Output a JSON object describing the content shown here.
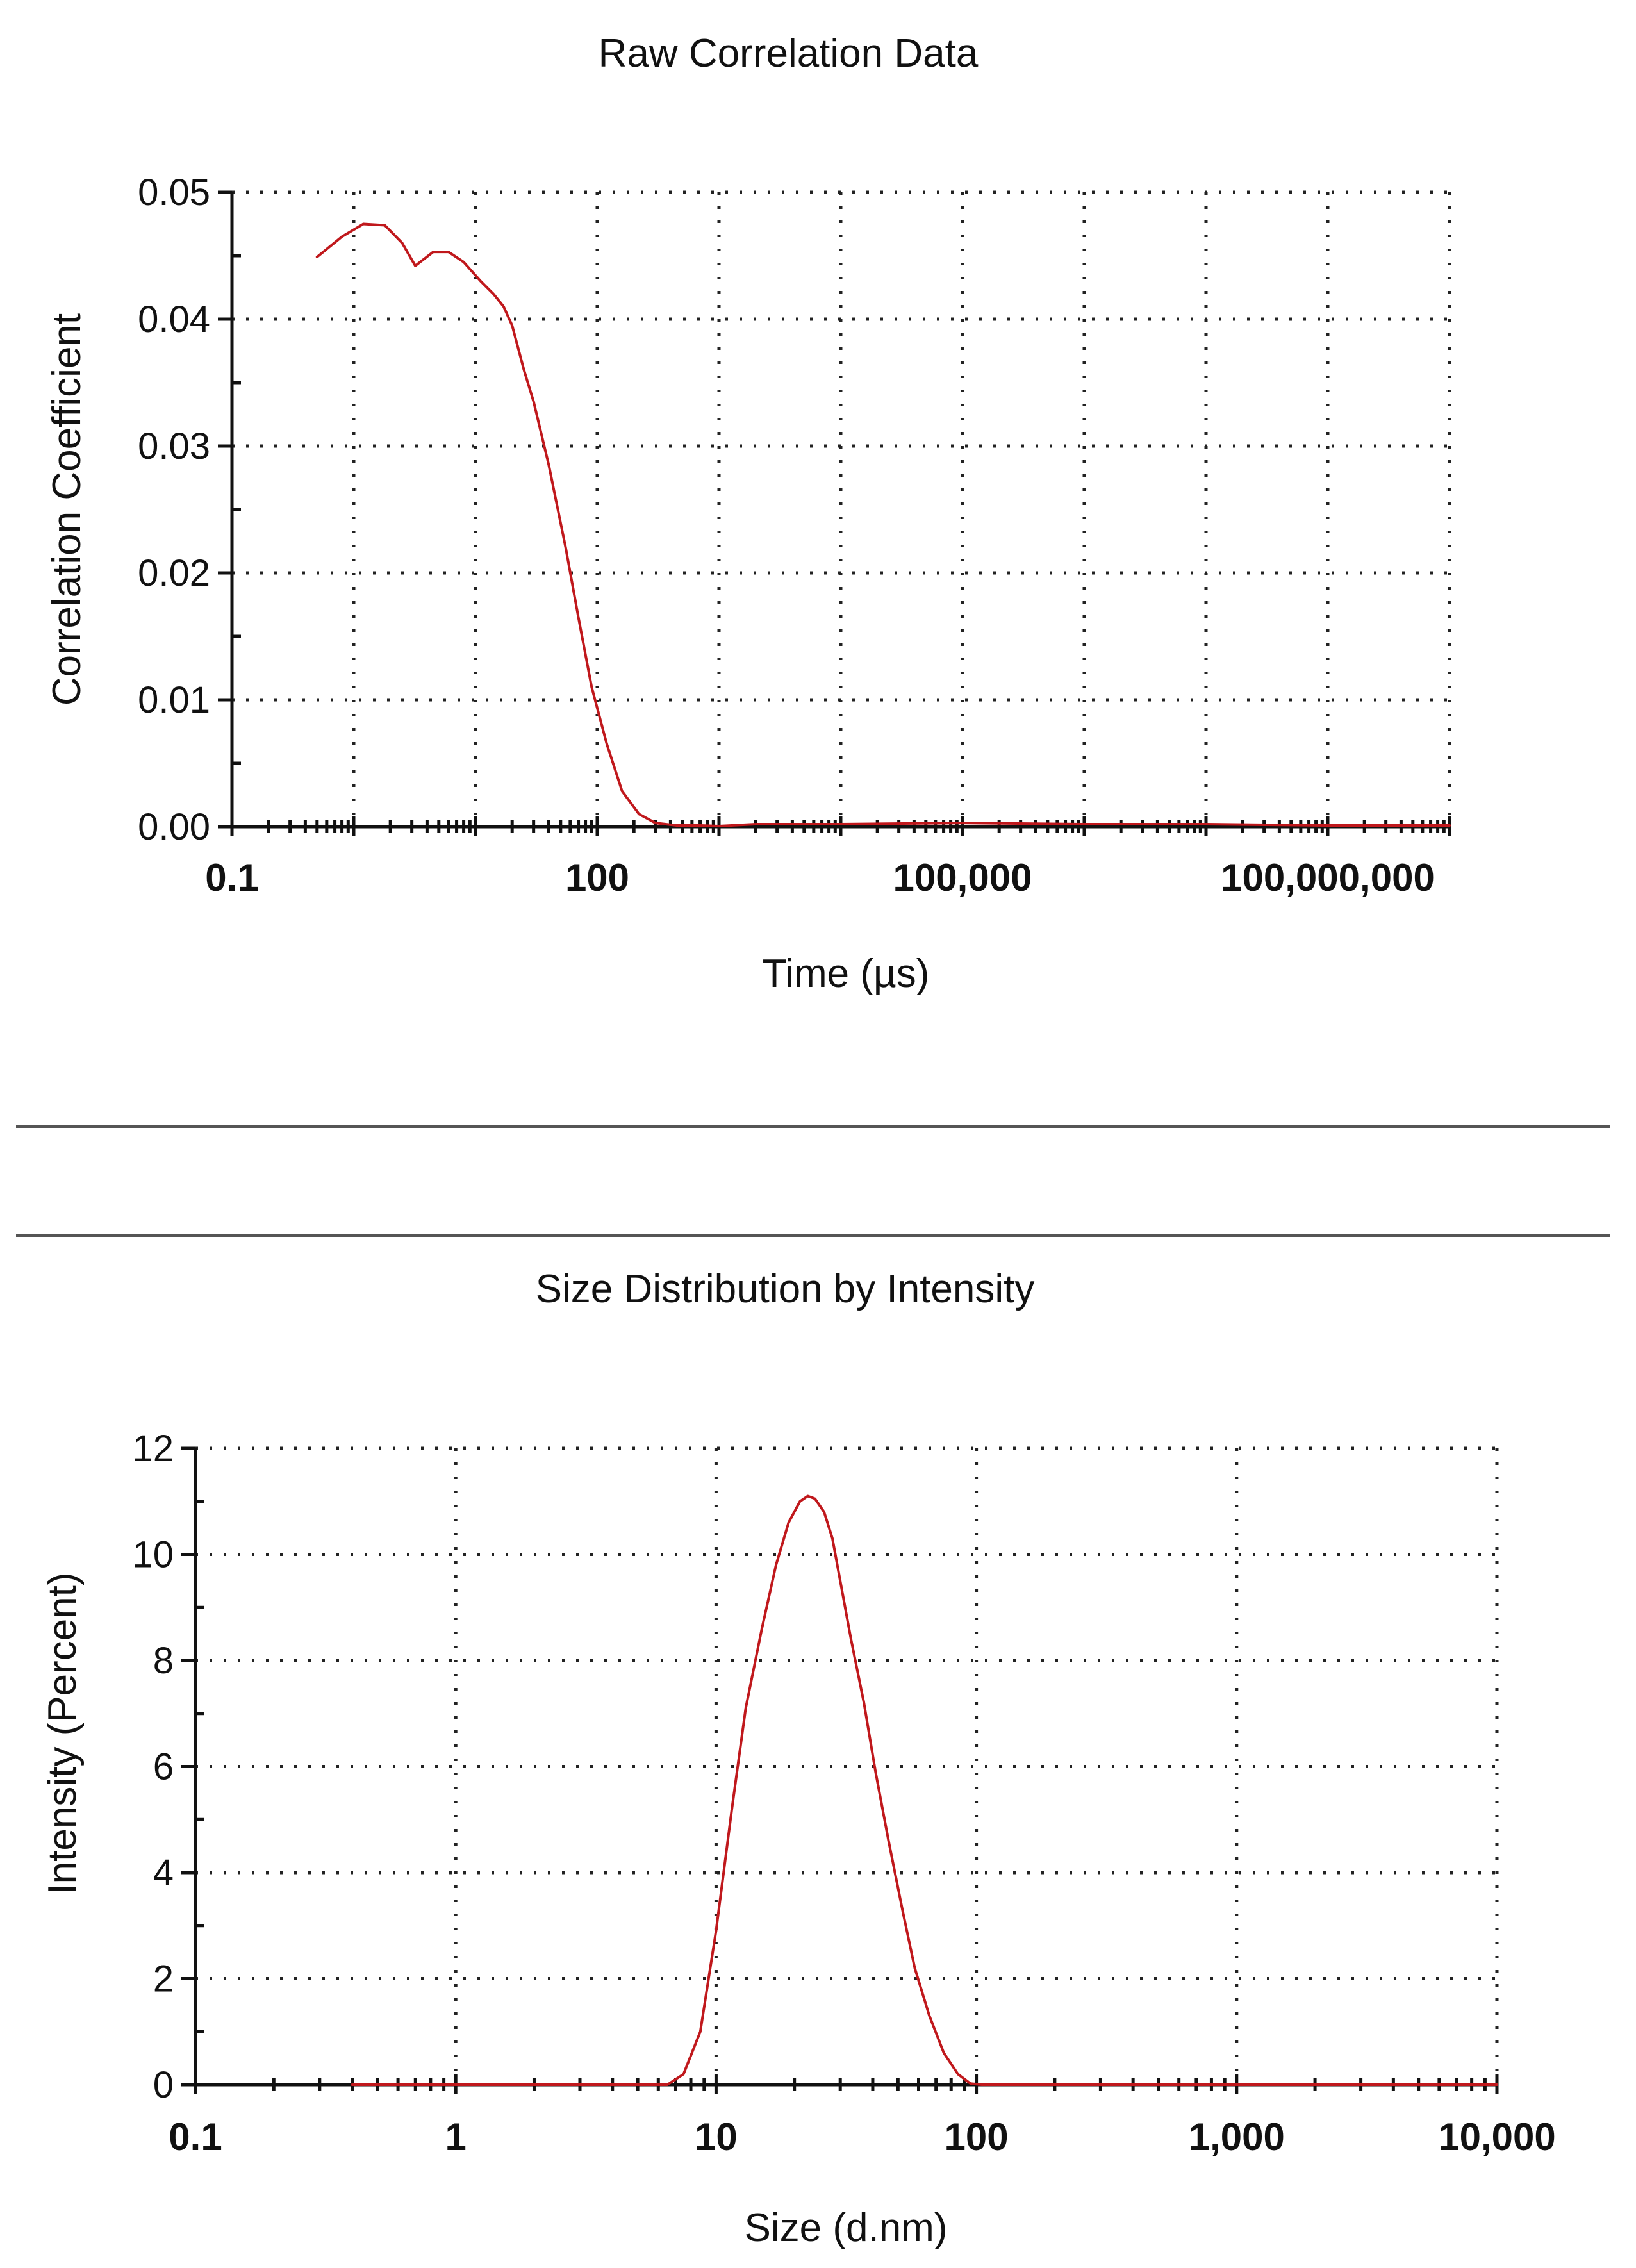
{
  "colors": {
    "curve": "#c0181c",
    "axis": "#111111",
    "background": "#ffffff"
  },
  "chart_data": [
    {
      "type": "line",
      "title": "Raw Correlation Data",
      "xlabel": "Time (µs)",
      "ylabel": "Correlation Coefficient",
      "xscale": "log",
      "xlim": [
        0.1,
        1000000000
      ],
      "ylim": [
        0,
        0.05
      ],
      "grid": true,
      "xticks": [
        0.1,
        100,
        100000,
        100000000
      ],
      "xtick_labels": [
        "0.1",
        "100",
        "100,000",
        "100,000,000"
      ],
      "yticks": [
        0,
        0.01,
        0.02,
        0.03,
        0.04,
        0.05
      ],
      "ytick_labels": [
        "0.00",
        "0.01",
        "0.02",
        "0.03",
        "0.04",
        "0.05"
      ],
      "series": [
        {
          "x": [
            0.5,
            0.8,
            1.2,
            1.8,
            2.5,
            3.2,
            4.5,
            6,
            8,
            11,
            14,
            17,
            20,
            25,
            30,
            40,
            55,
            70,
            90,
            120,
            160,
            220,
            300,
            450,
            700,
            1000,
            2000,
            10000,
            100000,
            1000000,
            10000000,
            100000000,
            1000000000
          ],
          "y": [
            0.0449,
            0.0465,
            0.0475,
            0.0474,
            0.046,
            0.0442,
            0.0453,
            0.0453,
            0.0445,
            0.043,
            0.042,
            0.041,
            0.0395,
            0.036,
            0.0335,
            0.0285,
            0.022,
            0.0165,
            0.011,
            0.0065,
            0.0028,
            0.001,
            0.0003,
            0.0001,
            0.0001,
            5e-05,
            0.0002,
            0.0002,
            0.0003,
            0.0002,
            0.0002,
            0.0001,
            0.0001
          ]
        }
      ]
    },
    {
      "type": "line",
      "title": "Size Distribution by Intensity",
      "xlabel": "Size (d.nm)",
      "ylabel": "Intensity (Percent)",
      "xscale": "log",
      "xlim": [
        0.1,
        10000
      ],
      "ylim": [
        0,
        12
      ],
      "grid": true,
      "xticks": [
        0.1,
        1,
        10,
        100,
        1000,
        10000
      ],
      "xtick_labels": [
        "0.1",
        "1",
        "10",
        "100",
        "1,000",
        "10,000"
      ],
      "yticks": [
        0,
        2,
        4,
        6,
        8,
        10,
        12
      ],
      "ytick_labels": [
        "0",
        "2",
        "4",
        "6",
        "8",
        "10",
        "12"
      ],
      "series": [
        {
          "x": [
            0.4,
            1,
            3,
            6.5,
            7.5,
            8.7,
            10,
            11.5,
            13,
            15,
            17,
            19,
            21,
            22.5,
            24,
            26,
            28,
            30,
            33,
            37,
            41,
            46,
            52,
            58,
            66,
            75,
            85,
            95,
            105,
            200,
            1000,
            10000
          ],
          "y": [
            0,
            0,
            0,
            0,
            0.2,
            1,
            2.9,
            5.2,
            7.1,
            8.6,
            9.8,
            10.6,
            11,
            11.1,
            11.05,
            10.8,
            10.3,
            9.5,
            8.4,
            7.2,
            5.9,
            4.6,
            3.3,
            2.2,
            1.3,
            0.6,
            0.2,
            0.02,
            0,
            0,
            0,
            0
          ]
        }
      ]
    }
  ]
}
